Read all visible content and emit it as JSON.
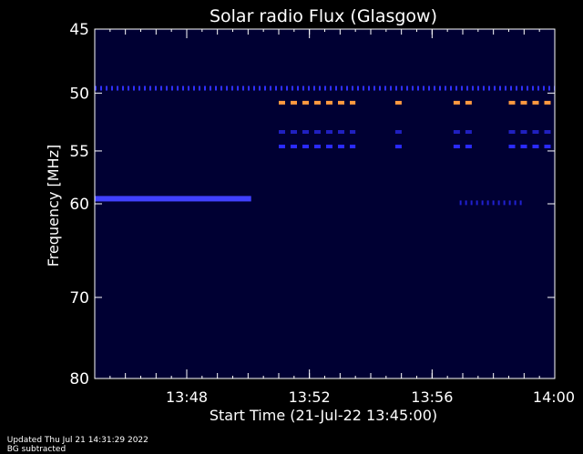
{
  "chart_data": {
    "type": "heatmap",
    "title": "Solar radio Flux (Glasgow)",
    "xlabel": "Start Time (21-Jul-22 13:45:00)",
    "ylabel": "Frequency [MHz]",
    "x_range_minutes": [
      0,
      15
    ],
    "ylim": [
      80,
      45
    ],
    "y_scale": "log",
    "x_ticks": [
      {
        "minute": 3,
        "label": "13:48"
      },
      {
        "minute": 7,
        "label": "13:52"
      },
      {
        "minute": 11,
        "label": "13:56"
      },
      {
        "minute": 15,
        "label": "14:00"
      }
    ],
    "y_ticks": [
      {
        "value": 45,
        "label": "45"
      },
      {
        "value": 50,
        "label": "50"
      },
      {
        "value": 55,
        "label": "55"
      },
      {
        "value": 60,
        "label": "60"
      },
      {
        "value": 70,
        "label": "70"
      },
      {
        "value": 80,
        "label": "80"
      }
    ],
    "background_color": "#000033",
    "bands": [
      {
        "freq": 49.6,
        "start": 0,
        "end": 15,
        "color": "#3030ff",
        "pattern": "dotted"
      },
      {
        "freq": 50.8,
        "start": 6,
        "end": 15,
        "color": "#ff9a40",
        "pattern": "dashed",
        "segments": [
          [
            6.0,
            8.5
          ],
          [
            9.8,
            10.1
          ],
          [
            11.7,
            12.3
          ],
          [
            13.5,
            15.0
          ]
        ]
      },
      {
        "freq": 53.3,
        "start": 6,
        "end": 15,
        "color": "#2020c0",
        "pattern": "dashed",
        "segments": [
          [
            6.0,
            8.5
          ],
          [
            9.8,
            10.1
          ],
          [
            11.7,
            12.3
          ],
          [
            13.5,
            15.0
          ]
        ]
      },
      {
        "freq": 54.6,
        "start": 6,
        "end": 15,
        "color": "#2a2aff",
        "pattern": "dashed",
        "segments": [
          [
            6.0,
            8.5
          ],
          [
            9.8,
            10.1
          ],
          [
            11.7,
            12.3
          ],
          [
            13.5,
            15.0
          ]
        ]
      },
      {
        "freq": 59.5,
        "start": 0,
        "end": 5.1,
        "color": "#4040ff",
        "pattern": "solid"
      },
      {
        "freq": 59.9,
        "start": 11.9,
        "end": 14.0,
        "color": "#2020d0",
        "pattern": "dotted"
      }
    ]
  },
  "footer": {
    "updated": "Updated Thu Jul 21 14:31:29 2022",
    "note": "BG subtracted"
  }
}
